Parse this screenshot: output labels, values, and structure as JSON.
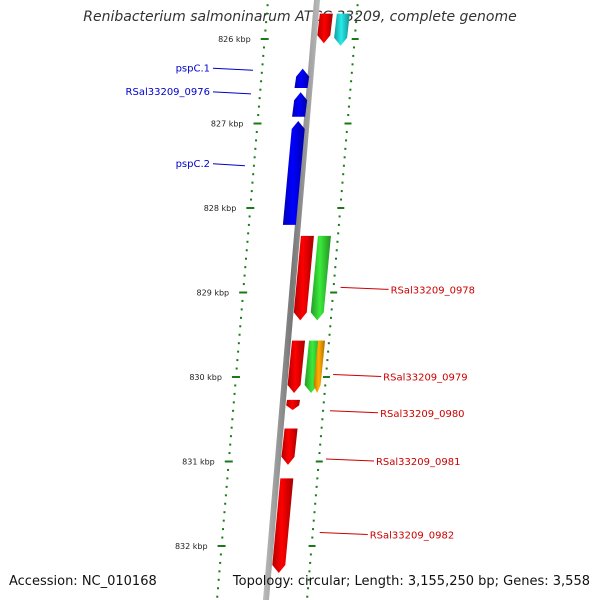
{
  "title": "Renibacterium salmoninarum ATCC 33209, complete genome",
  "accession": "Accession: NC_010168",
  "topology": "Topology: circular; Length: 3,155,250 bp; Genes: 3,558",
  "colors": {
    "forward_label": "#0000cc",
    "reverse_label": "#cc0000",
    "backbone": "#888888",
    "tick": "#1a7a1a"
  },
  "scale": {
    "unit": "kbp",
    "ticks": [
      826,
      827,
      828,
      829,
      830,
      831,
      832
    ]
  },
  "gene_labels": [
    {
      "text": "pspC.1",
      "side": "left",
      "kbp": 826.37
    },
    {
      "text": "RSal33209_0976",
      "side": "left",
      "kbp": 826.65
    },
    {
      "text": "pspC.2",
      "side": "left",
      "kbp": 827.5
    },
    {
      "text": "RSal33209_0978",
      "side": "right",
      "kbp": 828.94
    },
    {
      "text": "RSal33209_0979",
      "side": "right",
      "kbp": 829.97
    },
    {
      "text": "RSal33209_0980",
      "side": "right",
      "kbp": 830.4
    },
    {
      "text": "RSal33209_0981",
      "side": "right",
      "kbp": 830.97
    },
    {
      "text": "RSal33209_0982",
      "side": "right",
      "kbp": 831.84
    }
  ],
  "features": [
    {
      "name": "cds-forward-1",
      "start": 826.35,
      "end": 826.58,
      "strand": "+",
      "track": "cds",
      "color": "#0000ee"
    },
    {
      "name": "cds-forward-2",
      "start": 826.63,
      "end": 826.92,
      "strand": "+",
      "track": "cds",
      "color": "#0000ee"
    },
    {
      "name": "cds-forward-3",
      "start": 826.97,
      "end": 828.2,
      "strand": "+",
      "track": "cds",
      "color": "#0000ee"
    },
    {
      "name": "cds-reverse-top",
      "start": 825.7,
      "end": 826.05,
      "strand": "-",
      "track": "cds",
      "color": "#ee0000"
    },
    {
      "name": "gene-top",
      "start": 825.7,
      "end": 826.08,
      "strand": "-",
      "track": "gene",
      "color": "#22cccc"
    },
    {
      "name": "cds-reverse-0978",
      "start": 828.33,
      "end": 829.33,
      "strand": "-",
      "track": "cds",
      "color": "#ee0000"
    },
    {
      "name": "gene-0978",
      "start": 828.33,
      "end": 829.33,
      "strand": "-",
      "track": "gene",
      "color": "#33cc33"
    },
    {
      "name": "cds-reverse-0979",
      "start": 829.57,
      "end": 830.19,
      "strand": "-",
      "track": "cds",
      "color": "#ee0000"
    },
    {
      "name": "gene-0979",
      "start": 829.57,
      "end": 830.19,
      "strand": "-",
      "track": "gene",
      "color": "#33cc33"
    },
    {
      "name": "gene-0979-b",
      "start": 829.57,
      "end": 830.19,
      "strand": "-",
      "track": "gene2",
      "color": "#ff9900"
    },
    {
      "name": "cds-reverse-0980",
      "start": 830.27,
      "end": 830.39,
      "strand": "-",
      "track": "cds",
      "color": "#ee0000"
    },
    {
      "name": "cds-reverse-0981",
      "start": 830.61,
      "end": 831.04,
      "strand": "-",
      "track": "cds",
      "color": "#ee0000"
    },
    {
      "name": "cds-reverse-0982",
      "start": 831.2,
      "end": 832.32,
      "strand": "-",
      "track": "cds",
      "color": "#ee0000"
    }
  ]
}
